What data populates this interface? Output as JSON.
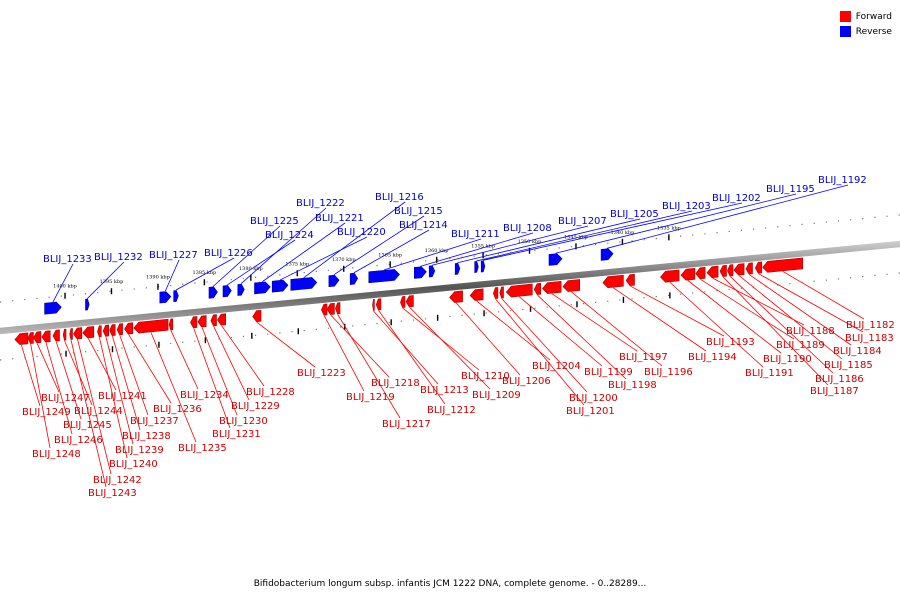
{
  "caption": "Bifidobacterium longum subsp. infantis JCM 1222 DNA, complete genome. - 0..28289...",
  "legend": [
    {
      "label": "Forward",
      "color": "#ff0000"
    },
    {
      "label": "Reverse",
      "color": "#0000ff"
    }
  ],
  "colors": {
    "forward": "#ff0000",
    "forward_dark": "#aa0000",
    "reverse": "#0000ff",
    "reverse_dark": "#0000aa",
    "forward_text": "#cc0000",
    "reverse_text": "#0000cc"
  },
  "scale_ticks": [
    {
      "label": "1400 kbp",
      "kbp": 1400
    },
    {
      "label": "1395 kbp",
      "kbp": 1395
    },
    {
      "label": "1390 kbp",
      "kbp": 1390
    },
    {
      "label": "1385 kbp",
      "kbp": 1385
    },
    {
      "label": "1380 kbp",
      "kbp": 1380
    },
    {
      "label": "1375 kbp",
      "kbp": 1375
    },
    {
      "label": "1370 kbp",
      "kbp": 1370
    },
    {
      "label": "1365 kbp",
      "kbp": 1365
    },
    {
      "label": "1360 kbp",
      "kbp": 1360
    },
    {
      "label": "1355 kbp",
      "kbp": 1355
    },
    {
      "label": "1350 kbp",
      "kbp": 1350
    },
    {
      "label": "1345 kbp",
      "kbp": 1345
    },
    {
      "label": "1340 kbp",
      "kbp": 1340
    },
    {
      "label": "1335 kbp",
      "kbp": 1335
    }
  ],
  "reverse_genes": [
    {
      "name": "BLIJ_1233",
      "start": 1402.2,
      "end": 1400.4
    },
    {
      "name": "BLIJ_1232",
      "start": 1397.8,
      "end": 1397.4
    },
    {
      "name": "BLIJ_1227",
      "start": 1389.8,
      "end": 1388.6
    },
    {
      "name": "BLIJ_1226",
      "start": 1388.3,
      "end": 1387.8
    },
    {
      "name": "BLIJ_1225",
      "start": 1384.5,
      "end": 1383.6
    },
    {
      "name": "BLIJ_1224",
      "start": 1383.0,
      "end": 1382.1
    },
    {
      "name": "BLIJ_1222",
      "start": 1381.4,
      "end": 1380.7
    },
    {
      "name": "BLIJ_1221",
      "start": 1379.6,
      "end": 1377.9
    },
    {
      "name": "BLIJ_1220",
      "start": 1377.7,
      "end": 1376.0
    },
    {
      "name": "BLIJ_1216",
      "start": 1375.7,
      "end": 1372.9
    },
    {
      "name": "BLIJ_1215",
      "start": 1371.6,
      "end": 1370.5
    },
    {
      "name": "BLIJ_1214",
      "start": 1369.3,
      "end": 1368.5
    },
    {
      "name": "BLIJ_1211",
      "start": 1367.3,
      "end": 1364.0
    },
    {
      "name": "BLIJ_1208",
      "start": 1362.4,
      "end": 1361.1
    },
    {
      "name": "BLIJ_1207",
      "start": 1360.8,
      "end": 1360.2
    },
    {
      "name": "BLIJ_1205",
      "start": 1358.0,
      "end": 1357.5
    },
    {
      "name": "BLIJ_1203",
      "start": 1355.9,
      "end": 1355.5
    },
    {
      "name": "BLIJ_1202",
      "start": 1355.2,
      "end": 1354.8
    },
    {
      "name": "BLIJ_1195",
      "start": 1347.9,
      "end": 1346.5
    },
    {
      "name": "BLIJ_1192",
      "start": 1342.3,
      "end": 1341.0
    }
  ],
  "forward_genes": [
    {
      "name": "BLIJ_1249",
      "start": 1405.4,
      "end": 1404.0
    },
    {
      "name": "BLIJ_1248",
      "start": 1404.0,
      "end": 1403.4
    },
    {
      "name": "BLIJ_1247",
      "start": 1403.4,
      "end": 1402.6
    },
    {
      "name": "BLIJ_1246",
      "start": 1402.5,
      "end": 1401.6
    },
    {
      "name": "BLIJ_1245",
      "start": 1401.3,
      "end": 1400.6
    },
    {
      "name": "BLIJ_1244",
      "start": 1400.2,
      "end": 1399.9
    },
    {
      "name": "BLIJ_1243",
      "start": 1399.5,
      "end": 1399.2
    },
    {
      "name": "BLIJ_1242",
      "start": 1399.1,
      "end": 1398.2
    },
    {
      "name": "BLIJ_1241",
      "start": 1398.1,
      "end": 1396.9
    },
    {
      "name": "BLIJ_1240",
      "start": 1396.5,
      "end": 1396.1
    },
    {
      "name": "BLIJ_1239",
      "start": 1395.9,
      "end": 1395.3
    },
    {
      "name": "BLIJ_1238",
      "start": 1395.2,
      "end": 1394.6
    },
    {
      "name": "BLIJ_1237",
      "start": 1394.4,
      "end": 1393.8
    },
    {
      "name": "BLIJ_1236",
      "start": 1393.6,
      "end": 1392.7
    },
    {
      "name": "BLIJ_1235",
      "start": 1392.6,
      "end": 1388.9
    },
    {
      "name": "BLIJ_1234",
      "start": 1388.8,
      "end": 1388.4
    },
    {
      "name": "BLIJ_1231",
      "start": 1386.5,
      "end": 1385.8
    },
    {
      "name": "BLIJ_1230",
      "start": 1385.7,
      "end": 1384.8
    },
    {
      "name": "BLIJ_1229",
      "start": 1384.3,
      "end": 1383.7
    },
    {
      "name": "BLIJ_1228",
      "start": 1383.6,
      "end": 1382.7
    },
    {
      "name": "BLIJ_1223",
      "start": 1379.8,
      "end": 1378.9
    },
    {
      "name": "BLIJ_1219",
      "start": 1372.4,
      "end": 1371.8
    },
    {
      "name": "BLIJ_1218",
      "start": 1371.8,
      "end": 1371.0
    },
    {
      "name": "BLIJ_1217",
      "start": 1370.9,
      "end": 1370.4
    },
    {
      "name": "BLIJ_1213",
      "start": 1366.9,
      "end": 1366.7
    },
    {
      "name": "BLIJ_1212",
      "start": 1366.5,
      "end": 1366.0
    },
    {
      "name": "BLIJ_1210",
      "start": 1363.9,
      "end": 1363.4
    },
    {
      "name": "BLIJ_1209",
      "start": 1363.3,
      "end": 1362.5
    },
    {
      "name": "BLIJ_1206",
      "start": 1358.6,
      "end": 1357.2
    },
    {
      "name": "BLIJ_1204",
      "start": 1356.4,
      "end": 1355.0
    },
    {
      "name": "BLIJ_1201",
      "start": 1353.9,
      "end": 1353.4
    },
    {
      "name": "BLIJ_1200",
      "start": 1353.2,
      "end": 1352.8
    },
    {
      "name": "BLIJ_1199",
      "start": 1352.5,
      "end": 1349.7
    },
    {
      "name": "BLIJ_1198",
      "start": 1349.5,
      "end": 1348.8
    },
    {
      "name": "BLIJ_1197",
      "start": 1348.6,
      "end": 1346.6
    },
    {
      "name": "BLIJ_1196",
      "start": 1346.4,
      "end": 1344.6
    },
    {
      "name": "BLIJ_1194",
      "start": 1342.1,
      "end": 1339.9
    },
    {
      "name": "BLIJ_1193",
      "start": 1339.6,
      "end": 1338.7
    },
    {
      "name": "BLIJ_1191",
      "start": 1335.9,
      "end": 1333.9
    },
    {
      "name": "BLIJ_1190",
      "start": 1333.7,
      "end": 1332.2
    },
    {
      "name": "BLIJ_1189",
      "start": 1332.1,
      "end": 1331.1
    },
    {
      "name": "BLIJ_1188",
      "start": 1330.9,
      "end": 1329.7
    },
    {
      "name": "BLIJ_1187",
      "start": 1329.5,
      "end": 1328.8
    },
    {
      "name": "BLIJ_1186",
      "start": 1328.7,
      "end": 1328.1
    },
    {
      "name": "BLIJ_1185",
      "start": 1328.0,
      "end": 1326.9
    },
    {
      "name": "BLIJ_1184",
      "start": 1326.7,
      "end": 1326.0
    },
    {
      "name": "BLIJ_1183",
      "start": 1325.7,
      "end": 1325.0
    },
    {
      "name": "BLIJ_1182",
      "start": 1324.9,
      "end": 1320.6
    }
  ]
}
